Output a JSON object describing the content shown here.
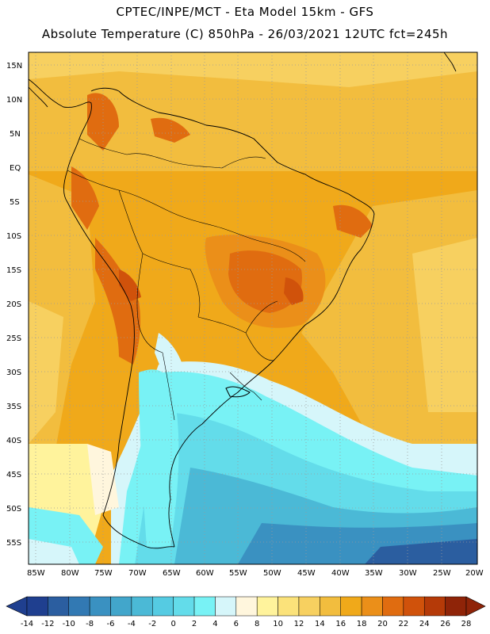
{
  "header": {
    "line1": "CPTEC/INPE/MCT -  Eta Model 15km - GFS",
    "line2": "Absolute Temperature (C) 850hPa - 26/03/2021 12UTC fct=245h"
  },
  "map": {
    "lat_labels": [
      "15N",
      "10N",
      "5N",
      "EQ",
      "5S",
      "10S",
      "15S",
      "20S",
      "25S",
      "30S",
      "35S",
      "40S",
      "45S",
      "50S",
      "55S"
    ],
    "lon_labels": [
      "85W",
      "80W",
      "75W",
      "70W",
      "65W",
      "60W",
      "55W",
      "50W",
      "45W",
      "40W",
      "35W",
      "30W",
      "25W",
      "20W"
    ]
  },
  "colorbar": {
    "values": [
      "-14",
      "-12",
      "-10",
      "-8",
      "-6",
      "-4",
      "-2",
      "0",
      "2",
      "4",
      "6",
      "8",
      "10",
      "12",
      "14",
      "16",
      "18",
      "20",
      "22",
      "24",
      "26",
      "28"
    ],
    "colors": [
      "#1f3f8f",
      "#2b5ea0",
      "#3279b3",
      "#3a91c1",
      "#42a6cb",
      "#4bb9d6",
      "#55cbe2",
      "#63dcea",
      "#78f2f5",
      "#d6f6fa",
      "#fff6dd",
      "#fff39c",
      "#fbe27a",
      "#f7d060",
      "#f2bd3e",
      "#f0a91a",
      "#eb8f19",
      "#e06c10",
      "#d0520b",
      "#b53a08",
      "#8f2408"
    ]
  }
}
